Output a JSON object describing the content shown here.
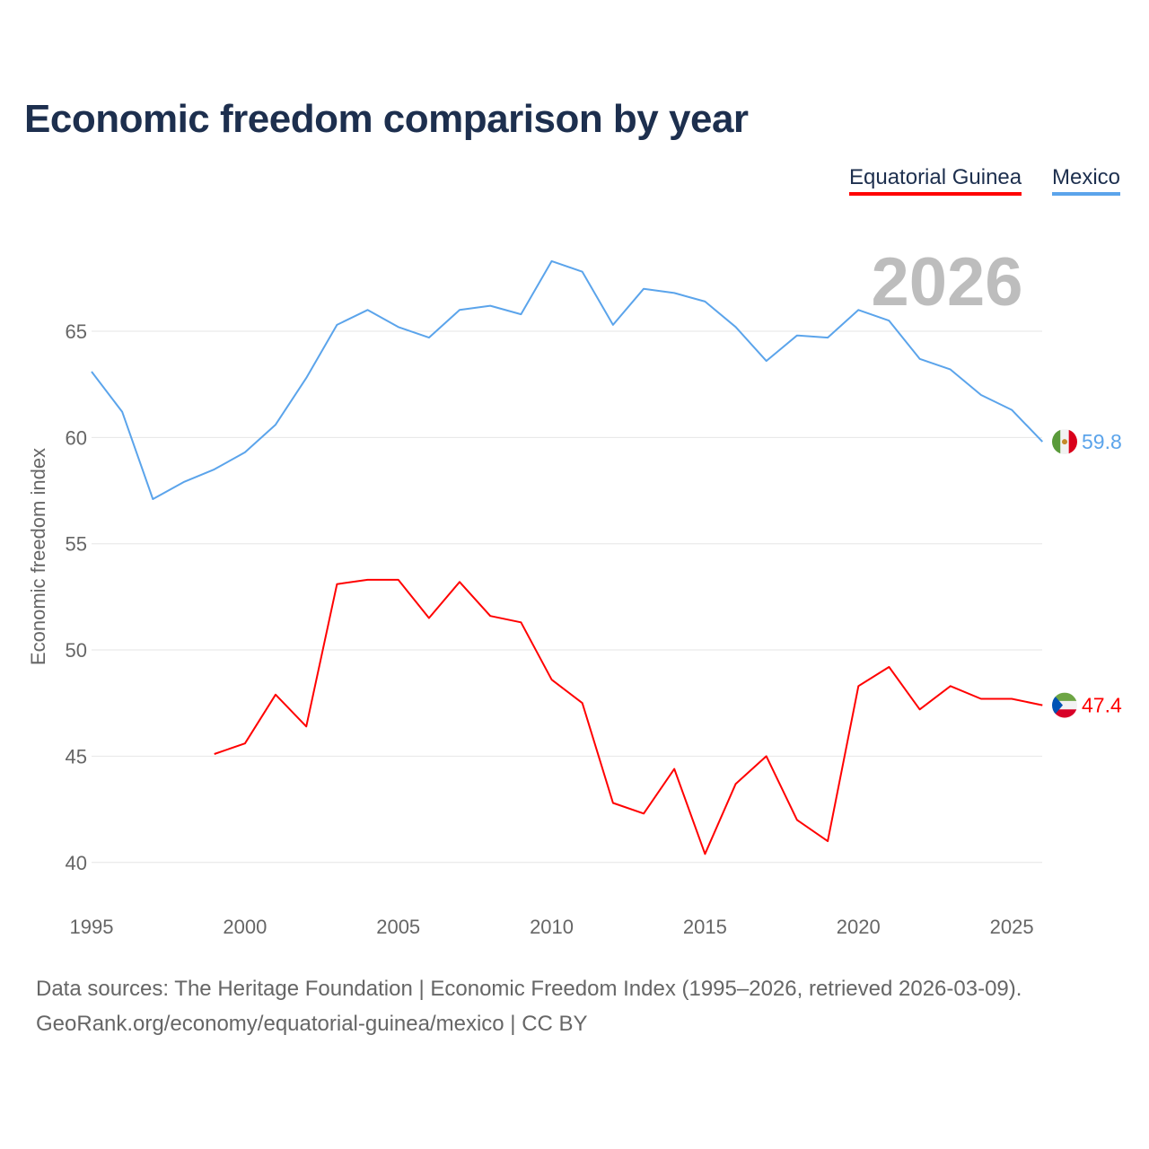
{
  "title": "Economic freedom comparison by year",
  "footer": {
    "line1": "Data sources: The Heritage Foundation | Economic Freedom Index (1995–2026, retrieved 2026-03-09).",
    "line2": "GeoRank.org/economy/equatorial-guinea/mexico | CC BY"
  },
  "chart_data": {
    "type": "line",
    "title": "Economic freedom comparison by year",
    "ylabel": "Economic freedom index",
    "xlabel": "",
    "year_watermark": "2026",
    "xlim": [
      1995,
      2026
    ],
    "ylim": [
      38,
      69
    ],
    "xticks": [
      "1995",
      "2000",
      "2005",
      "2010",
      "2015",
      "2020",
      "2025"
    ],
    "yticks": [
      "40",
      "45",
      "50",
      "55",
      "60",
      "65"
    ],
    "grid": true,
    "legend_position": "top-right",
    "series": [
      {
        "name": "Equatorial Guinea",
        "color": "#ff0000",
        "flag": "equatorial-guinea-flag",
        "end_label": "47.4",
        "x": [
          1999,
          2000,
          2001,
          2002,
          2003,
          2004,
          2005,
          2006,
          2007,
          2008,
          2009,
          2010,
          2011,
          2012,
          2013,
          2014,
          2015,
          2016,
          2017,
          2018,
          2019,
          2020,
          2021,
          2022,
          2023,
          2024,
          2025,
          2026
        ],
        "values": [
          45.1,
          45.6,
          47.9,
          46.4,
          53.1,
          53.3,
          53.3,
          51.5,
          53.2,
          51.6,
          51.3,
          48.6,
          47.5,
          42.8,
          42.3,
          44.4,
          40.4,
          43.7,
          45.0,
          42.0,
          41.0,
          48.3,
          49.2,
          47.2,
          48.3,
          47.7,
          47.7,
          47.4
        ]
      },
      {
        "name": "Mexico",
        "color": "#5ba4eb",
        "flag": "mexico-flag",
        "end_label": "59.8",
        "x": [
          1995,
          1996,
          1997,
          1998,
          1999,
          2000,
          2001,
          2002,
          2003,
          2004,
          2005,
          2006,
          2007,
          2008,
          2009,
          2010,
          2011,
          2012,
          2013,
          2014,
          2015,
          2016,
          2017,
          2018,
          2019,
          2020,
          2021,
          2022,
          2023,
          2024,
          2025,
          2026
        ],
        "values": [
          63.1,
          61.2,
          57.1,
          57.9,
          58.5,
          59.3,
          60.6,
          62.8,
          65.3,
          66.0,
          65.2,
          64.7,
          66.0,
          66.2,
          65.8,
          68.3,
          67.8,
          65.3,
          67.0,
          66.8,
          66.4,
          65.2,
          63.6,
          64.8,
          64.7,
          66.0,
          65.5,
          63.7,
          63.2,
          62.0,
          61.3,
          59.8
        ]
      }
    ]
  }
}
